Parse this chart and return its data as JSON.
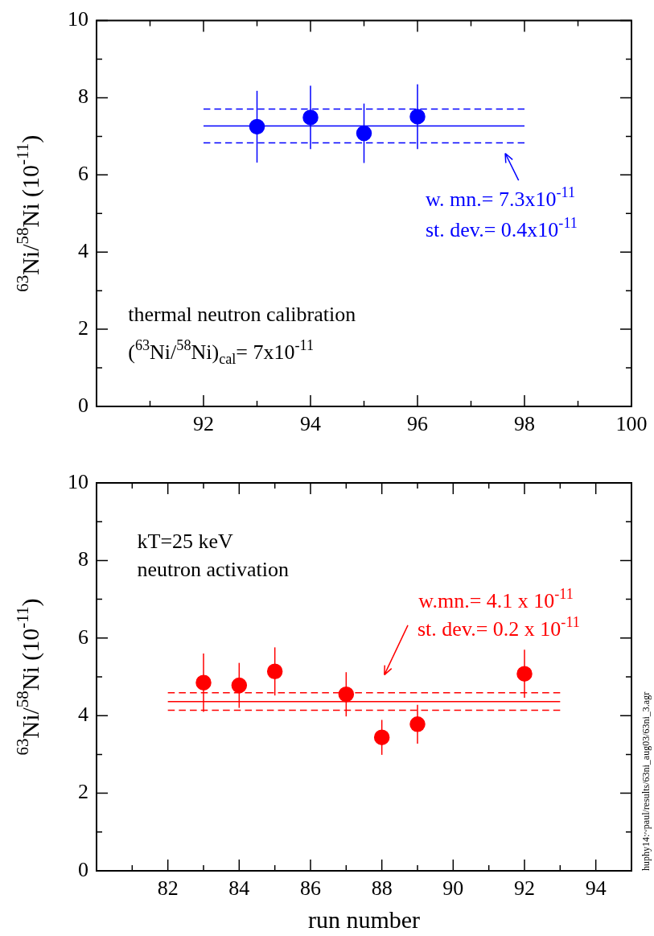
{
  "chart_data": [
    {
      "type": "scatter",
      "ylabel": "$^{63}$Ni/$^{58}$Ni (10$^{-11}$)",
      "x": [
        93,
        94,
        95,
        96
      ],
      "series": [
        {
          "color": "#0000ff",
          "values": [
            7.25,
            7.49,
            7.08,
            7.51
          ],
          "errors": [
            0.93,
            0.82,
            0.77,
            0.84
          ]
        },
        {
          "type": "line",
          "color": "#0000ff",
          "x": [
            92,
            98
          ],
          "values": [
            7.27,
            7.27
          ],
          "marker": "none",
          "line_style": "solid"
        },
        {
          "type": "line",
          "color": "#0000ff",
          "x": [
            92,
            98
          ],
          "values": [
            7.71,
            7.71
          ],
          "marker": "none",
          "line_style": "dashed"
        },
        {
          "type": "line",
          "color": "#0000ff",
          "x": [
            92,
            98
          ],
          "values": [
            6.83,
            6.83
          ],
          "marker": "none",
          "line_style": "dashed"
        }
      ],
      "xlim": [
        90,
        100
      ],
      "xticks": [
        {
          "value": 90,
          "label": null
        },
        {
          "value": 91,
          "label": null
        },
        92,
        {
          "value": 93,
          "label": null
        },
        94,
        {
          "value": 95,
          "label": null
        },
        96,
        {
          "value": 97,
          "label": null
        },
        98,
        {
          "value": 99,
          "label": null
        },
        100
      ],
      "ylim": [
        0,
        10
      ],
      "yticks": [
        0,
        {
          "value": 1,
          "label": null
        },
        2,
        {
          "value": 3,
          "label": null
        },
        4,
        {
          "value": 5,
          "label": null
        },
        6,
        {
          "value": 7,
          "label": null
        },
        8,
        {
          "value": 9,
          "label": null
        },
        10
      ],
      "marker": "circle",
      "grid": false,
      "legend": false,
      "annotations": [
        "w. mn.= 7.3x10$^{-11}$",
        "st. dev.= 0.4x10$^{-11}$",
        "thermal neutron calibration",
        "($^{63}$Ni/$^{58}$Ni)$_{cal}$= 7x10$^{-11}$"
      ]
    },
    {
      "type": "scatter",
      "xlabel": "run number",
      "ylabel": "$^{63}$Ni/$^{58}$Ni (10$^{-11}$)",
      "x": [
        83,
        84,
        85,
        87,
        88,
        89,
        92
      ],
      "series": [
        {
          "color": "#ff0000",
          "values": [
            4.85,
            4.78,
            5.14,
            4.55,
            3.44,
            3.78,
            5.08
          ],
          "errors": [
            0.75,
            0.58,
            0.62,
            0.57,
            0.45,
            0.5,
            0.62
          ]
        },
        {
          "type": "line",
          "color": "#ff0000",
          "x": [
            82,
            93
          ],
          "values": [
            4.36,
            4.36
          ],
          "marker": "none",
          "line_style": "solid"
        },
        {
          "type": "line",
          "color": "#ff0000",
          "x": [
            82,
            93
          ],
          "values": [
            4.59,
            4.59
          ],
          "marker": "none",
          "line_style": "dashed"
        },
        {
          "type": "line",
          "color": "#ff0000",
          "x": [
            82,
            93
          ],
          "values": [
            4.14,
            4.14
          ],
          "marker": "none",
          "line_style": "dashed"
        }
      ],
      "xlim": [
        80,
        95
      ],
      "xticks": [
        {
          "value": 80,
          "label": null
        },
        {
          "value": 81,
          "label": null
        },
        82,
        {
          "value": 83,
          "label": null
        },
        84,
        {
          "value": 85,
          "label": null
        },
        86,
        {
          "value": 87,
          "label": null
        },
        88,
        {
          "value": 89,
          "label": null
        },
        90,
        {
          "value": 91,
          "label": null
        },
        92,
        {
          "value": 93,
          "label": null
        },
        94,
        {
          "value": 95,
          "label": null
        }
      ],
      "ylim": [
        0,
        10
      ],
      "yticks": [
        0,
        {
          "value": 1,
          "label": null
        },
        2,
        {
          "value": 3,
          "label": null
        },
        4,
        {
          "value": 5,
          "label": null
        },
        6,
        {
          "value": 7,
          "label": null
        },
        8,
        {
          "value": 9,
          "label": null
        },
        10
      ],
      "marker": "circle",
      "grid": false,
      "legend": false,
      "annotations": [
        "kT=25 keV",
        "neutron activation",
        "w.mn.= 4.1 x 10$^{-11}$",
        "st. dev.= 0.2 x 10$^{-11}$",
        "huphy14:~paul/results/63ni_aug03/63ni_3.agr"
      ]
    }
  ]
}
